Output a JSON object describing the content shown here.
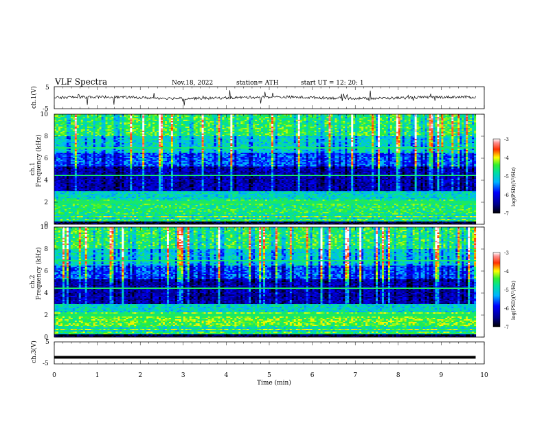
{
  "header": {
    "title": "VLF  Spectra",
    "date": "Nov.18, 2022",
    "station": "station= ATH",
    "start": "start  UT  =    12: 20: 1"
  },
  "chart_data": [
    {
      "type": "line",
      "panel": "ch1-waveform",
      "ylabel": "ch.1(V)",
      "ylim": [
        -5,
        5
      ],
      "yticks": [
        "5",
        "-5"
      ],
      "xlim": [
        0,
        10
      ],
      "color": "#000000",
      "description": "noisy waveform centered near 0 V with sparse spikes",
      "series": [
        {
          "name": "",
          "x": [
            0,
            1,
            2,
            3,
            4,
            5,
            6,
            7,
            8,
            9,
            9.8
          ],
          "values": [
            0.2,
            0.0,
            -0.3,
            0.3,
            0.5,
            0.2,
            0.0,
            -0.2,
            0.1,
            0.3,
            0.2
          ]
        }
      ]
    },
    {
      "type": "heatmap",
      "panel": "ch1-spectrogram",
      "ylabel": "ch.1",
      "ylabel2": "Frequency  (kHz)",
      "ylim": [
        0,
        10
      ],
      "yticks": [
        "0",
        "2",
        "4",
        "6",
        "8",
        "10"
      ],
      "xlim": [
        0,
        10
      ],
      "colorbar": {
        "label": "log(PSD)(V²/Hz)",
        "range": [
          -7,
          -3
        ],
        "ticks": [
          "-3",
          "-4",
          "-5",
          "-6",
          "-7"
        ]
      }
    },
    {
      "type": "heatmap",
      "panel": "ch2-spectrogram",
      "ylabel": "ch.2",
      "ylabel2": "Frequency  (kHz)",
      "ylim": [
        0,
        10
      ],
      "yticks": [
        "0",
        "2",
        "4",
        "6",
        "8",
        "10"
      ],
      "xlim": [
        0,
        10
      ],
      "colorbar": {
        "label": "log(PSD)(V²/Hz)",
        "range": [
          -7,
          -3
        ],
        "ticks": [
          "-3",
          "-4",
          "-5",
          "-6",
          "-7"
        ]
      }
    },
    {
      "type": "line",
      "panel": "ch3-waveform",
      "ylabel": "ch.3(V)",
      "ylim": [
        -5,
        5
      ],
      "yticks": [
        "5",
        "-5"
      ],
      "xlim": [
        0,
        10
      ],
      "color": "#000000",
      "series": [
        {
          "name": "",
          "x": [
            0,
            9.8
          ],
          "values": [
            -2,
            -2
          ]
        }
      ]
    }
  ],
  "xaxis": {
    "label": "Time  (min)",
    "ticks": [
      "0",
      "1",
      "2",
      "3",
      "4",
      "5",
      "6",
      "7",
      "8",
      "9",
      "10"
    ]
  }
}
